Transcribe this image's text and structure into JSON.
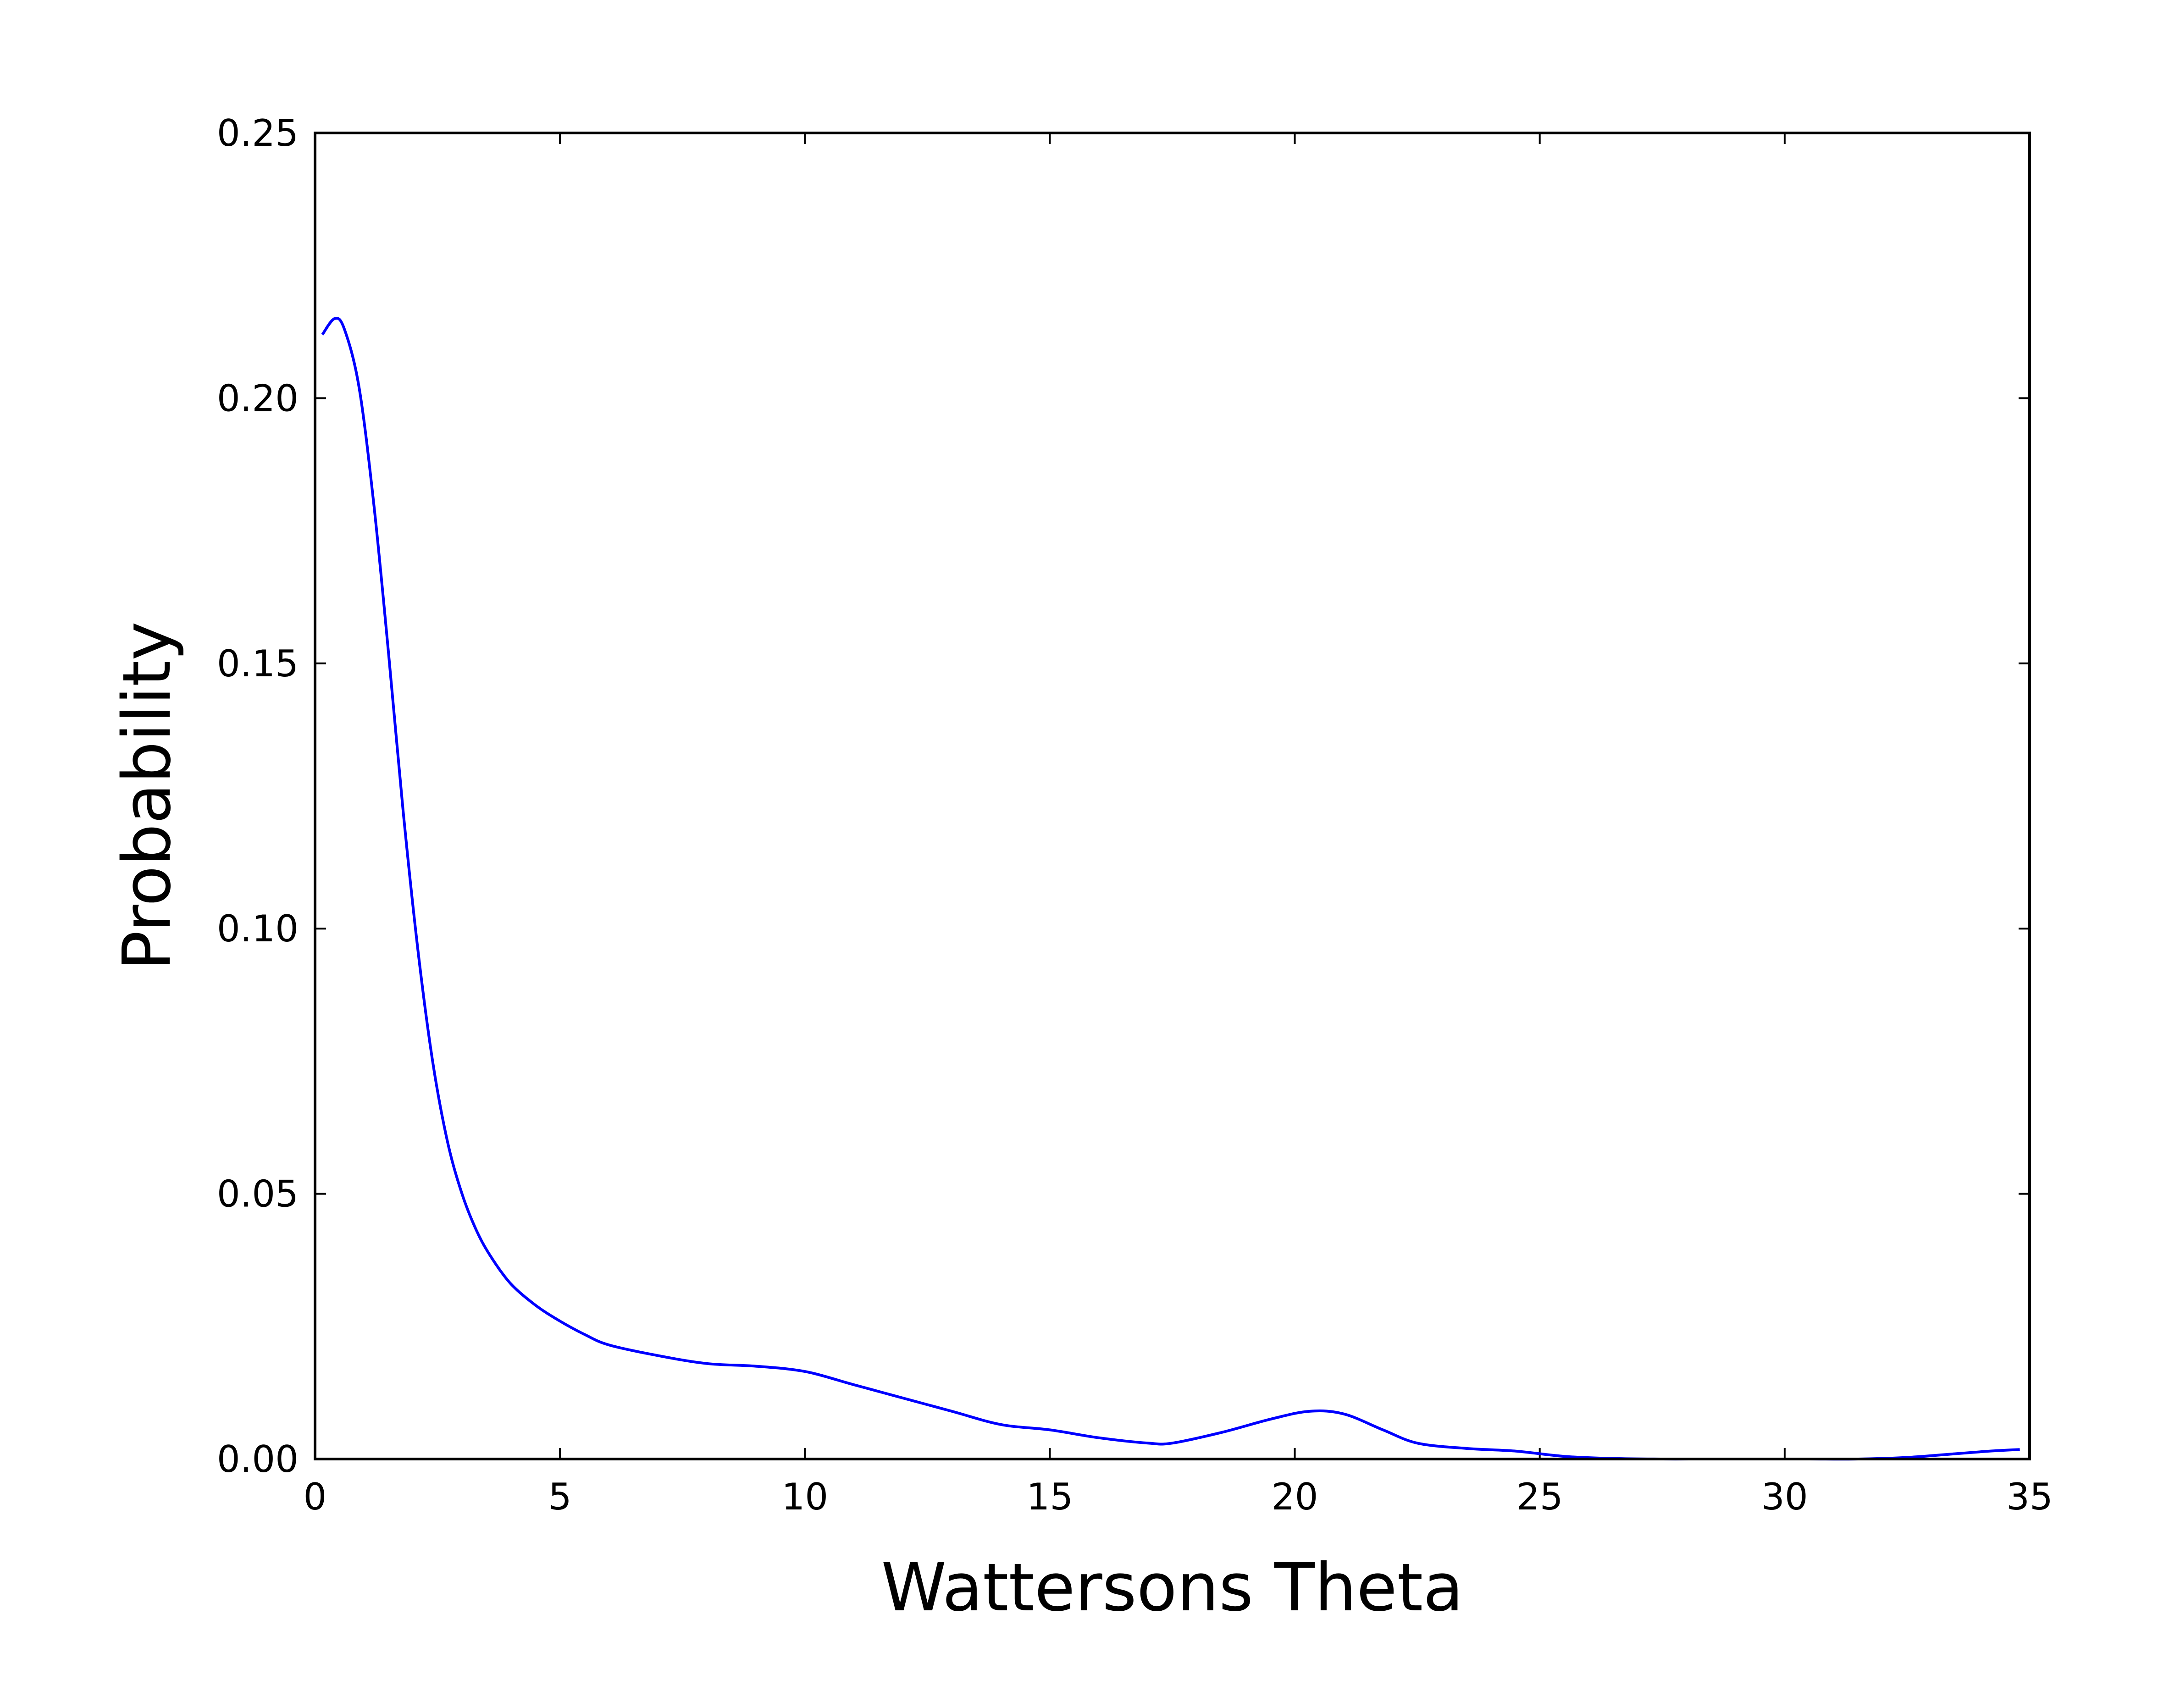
{
  "chart_data": {
    "type": "line",
    "title": "",
    "xlabel": "Wattersons Theta",
    "ylabel": "Probability",
    "xlim": [
      0,
      35
    ],
    "ylim": [
      0,
      0.25
    ],
    "xticks": [
      0,
      5,
      10,
      15,
      20,
      25,
      30,
      35
    ],
    "xtick_labels": [
      "0",
      "5",
      "10",
      "15",
      "20",
      "25",
      "30",
      "35"
    ],
    "yticks": [
      0,
      0.05,
      0.1,
      0.15,
      0.2,
      0.25
    ],
    "ytick_labels": [
      "0.00",
      "0.05",
      "0.10",
      "0.15",
      "0.20",
      "0.25"
    ],
    "grid": false,
    "legend": "none",
    "series": [
      {
        "color": "#0000ff",
        "x": [
          0.15,
          0.4,
          0.6,
          0.9,
          1.2,
          1.5,
          1.8,
          2.1,
          2.4,
          2.7,
          3.0,
          3.3,
          3.6,
          4.0,
          4.5,
          5.0,
          5.5,
          6.0,
          7.0,
          8.0,
          9.0,
          10.0,
          11.0,
          12.0,
          13.0,
          14.0,
          15.0,
          16.0,
          17.0,
          17.5,
          18.5,
          19.5,
          20.3,
          21.0,
          21.8,
          22.5,
          23.5,
          24.5,
          25.5,
          26.5,
          27.5,
          28.5,
          29.5,
          30.5,
          31.5,
          32.5,
          33.5,
          34.2,
          34.8
        ],
        "y": [
          0.212,
          0.215,
          0.213,
          0.202,
          0.18,
          0.152,
          0.122,
          0.096,
          0.075,
          0.06,
          0.05,
          0.043,
          0.038,
          0.033,
          0.029,
          0.026,
          0.0235,
          0.0215,
          0.0195,
          0.018,
          0.0175,
          0.0165,
          0.014,
          0.0115,
          0.009,
          0.0065,
          0.0055,
          0.004,
          0.003,
          0.003,
          0.005,
          0.0075,
          0.009,
          0.0085,
          0.0055,
          0.003,
          0.002,
          0.0015,
          0.0005,
          0.0001,
          0.0,
          0.0,
          0.0,
          0.0,
          0.0,
          0.0003,
          0.001,
          0.0015,
          0.0018
        ]
      }
    ]
  }
}
